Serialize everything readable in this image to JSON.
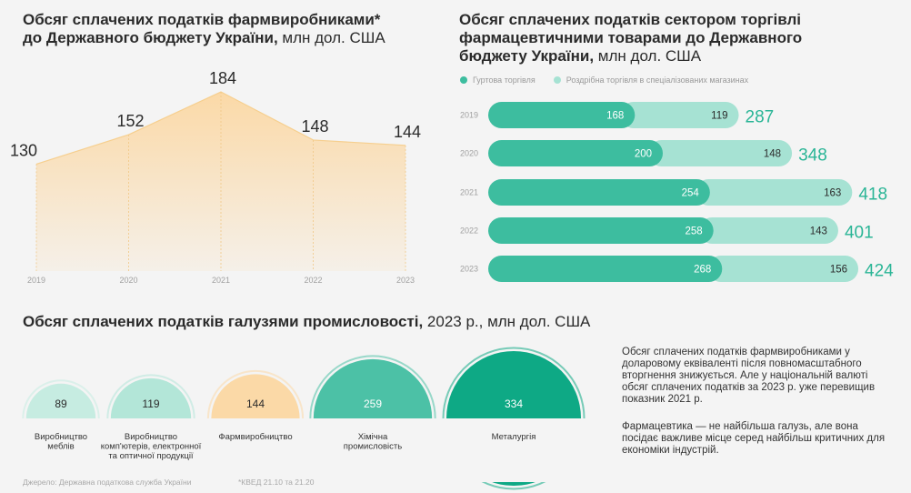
{
  "area_chart": {
    "title_bold": "Обсяг сплачених податків фармвиробниками*",
    "title_rest_bold": " до Державного бюджету України,",
    "title_light": " млн дол. США"
  },
  "bar_chart": {
    "title_bold": "Обсяг сплачених податків сектором торгівлі фармацевтичними товарами до Державного бюджету України,",
    "title_light": " млн дол. США",
    "legend": [
      "Гуртова торгівля",
      "Роздрібна торгівля в спеціалізованих магазинах"
    ]
  },
  "bubble_chart": {
    "title_bold": "Обсяг сплачених податків галузями промисловості,",
    "title_light": " 2023 р., млн дол. США"
  },
  "chart_data": [
    {
      "type": "area",
      "x": [
        "2019",
        "2020",
        "2021",
        "2022",
        "2023"
      ],
      "values": [
        130,
        152,
        184,
        148,
        144
      ],
      "color": "#fbd9a7"
    },
    {
      "type": "bar",
      "stacked": true,
      "orientation": "horizontal",
      "categories": [
        "2019",
        "2020",
        "2021",
        "2022",
        "2023"
      ],
      "series": [
        {
          "name": "Гуртова торгівля",
          "values": [
            168,
            200,
            254,
            258,
            268
          ],
          "color": "#3dbd9f"
        },
        {
          "name": "Роздрібна торгівля в спеціалізованих магазинах",
          "values": [
            119,
            148,
            163,
            143,
            156
          ],
          "color": "#a6e2d3"
        }
      ],
      "totals": [
        287,
        348,
        418,
        401,
        424
      ]
    },
    {
      "type": "bubble",
      "categories": [
        "Виробництво меблів",
        "Виробництво комп'ютерів, електронної та оптичної продукції",
        "Фармвиробництво",
        "Хімічна промисловість",
        "Металургія"
      ],
      "label_lines": [
        [
          "Виробництво",
          "меблів"
        ],
        [
          "Виробництво",
          "комп'ютерів, електронної",
          "та оптичної продукції"
        ],
        [
          "Фармвиробництво"
        ],
        [
          "Хімічна",
          "промисловість"
        ],
        [
          "Металургія"
        ]
      ],
      "values": [
        89,
        119,
        144,
        259,
        334
      ],
      "colors": [
        "#c6ece1",
        "#b3e6d8",
        "#fbd9a7",
        "#4cc1a6",
        "#0ea985"
      ]
    }
  ],
  "notes": {
    "p1": "Обсяг сплачених податків фармвиробниками у доларовому еквіваленті після повномасштабного вторгнення знижується. Але у національній валюті обсяг сплачених податків за 2023 р. уже перевищив показник 2021 р.",
    "p2": "Фармацевтика — не найбільша галузь, але вона посідає важливе місце серед найбільш критичних для економіки індустрій."
  },
  "footer": {
    "source": "Джерело: Державна податкова служба України",
    "kved": "*КВЕД 21.10 та 21.20"
  }
}
